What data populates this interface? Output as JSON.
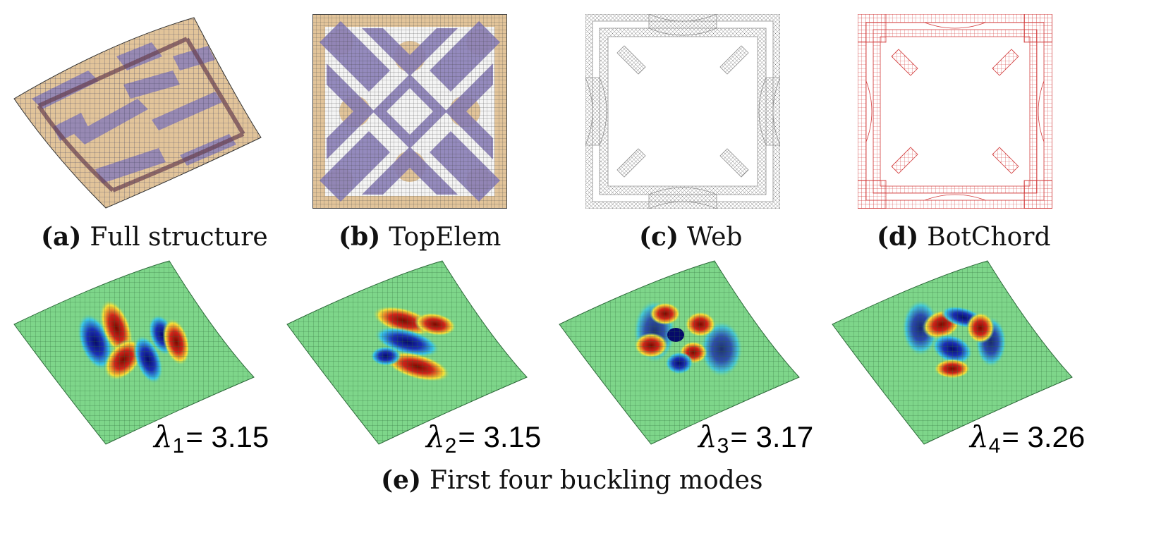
{
  "figure": {
    "top_row": [
      {
        "tag": "(a)",
        "title": "Full structure"
      },
      {
        "tag": "(b)",
        "title": "TopElem"
      },
      {
        "tag": "(c)",
        "title": "Web"
      },
      {
        "tag": "(d)",
        "title": "BotChord"
      }
    ],
    "bottom_caption": {
      "tag": "(e)",
      "title": "First four buckling modes"
    },
    "modes": [
      {
        "symbol": "λ",
        "index": "1",
        "value": "= 3.15"
      },
      {
        "symbol": "λ",
        "index": "2",
        "value": "= 3.15"
      },
      {
        "symbol": "λ",
        "index": "3",
        "value": "= 3.17"
      },
      {
        "symbol": "λ",
        "index": "4",
        "value": "= 3.26"
      }
    ],
    "colors": {
      "tan": "#e2c49a",
      "purple": "#8a7fb8",
      "web_gray": "#8c8c8c",
      "chord_red": "#d23a3a",
      "mode_green": "#7ed68a",
      "mode_red": "#d0241b",
      "mode_blue": "#1c2fb5"
    }
  }
}
